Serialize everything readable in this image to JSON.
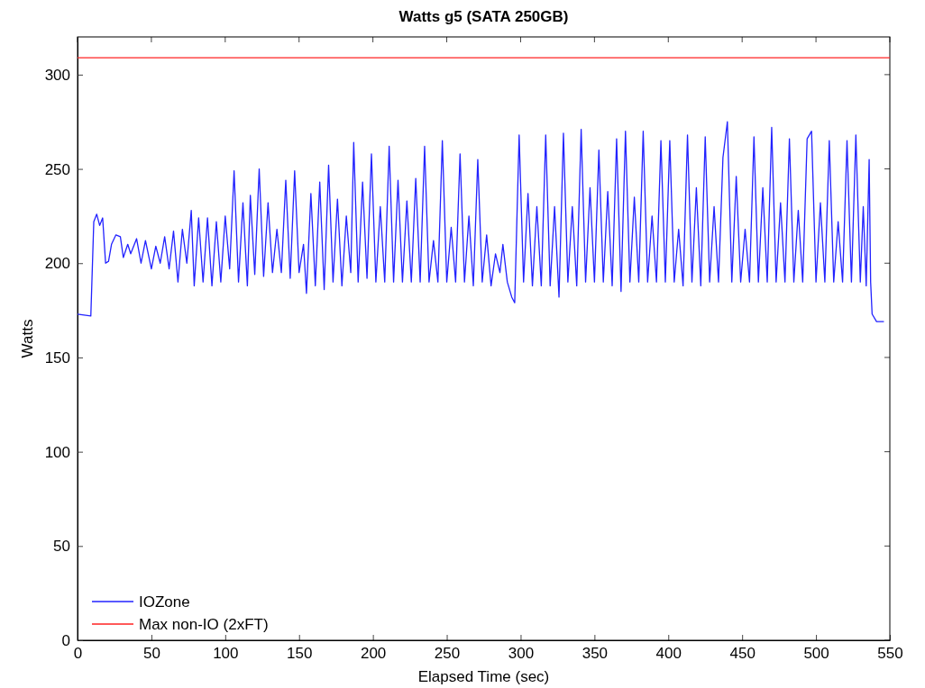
{
  "chart_data": {
    "type": "line",
    "title": "Watts g5 (SATA 250GB)",
    "xlabel": "Elapsed Time (sec)",
    "ylabel": "Watts",
    "xlim": [
      0,
      550
    ],
    "ylim": [
      0,
      320
    ],
    "xticks": [
      0,
      50,
      100,
      150,
      200,
      250,
      300,
      350,
      400,
      450,
      500,
      550
    ],
    "yticks": [
      0,
      50,
      100,
      150,
      200,
      250,
      300
    ],
    "grid": false,
    "legend": "bottom left",
    "marker": "none",
    "line_style": "solid",
    "series": [
      {
        "name": "IOZone",
        "color": "#2222ff",
        "x": [
          0,
          9,
          11,
          13,
          15,
          17,
          19,
          21,
          23,
          26,
          29,
          31,
          34,
          36,
          40,
          43,
          46,
          50,
          53,
          56,
          59,
          62,
          65,
          68,
          71,
          74,
          77,
          79,
          82,
          85,
          88,
          91,
          94,
          97,
          100,
          103,
          106,
          109,
          112,
          115,
          117,
          120,
          123,
          126,
          129,
          132,
          135,
          138,
          141,
          144,
          147,
          150,
          153,
          155,
          158,
          161,
          164,
          167,
          170,
          173,
          176,
          179,
          182,
          185,
          187,
          190,
          193,
          196,
          199,
          202,
          205,
          208,
          211,
          214,
          217,
          220,
          223,
          226,
          229,
          232,
          235,
          238,
          241,
          244,
          247,
          250,
          253,
          256,
          259,
          262,
          265,
          268,
          271,
          274,
          277,
          280,
          283,
          286,
          288,
          291,
          294,
          296,
          299,
          302,
          305,
          308,
          311,
          314,
          317,
          320,
          323,
          326,
          329,
          332,
          335,
          338,
          341,
          344,
          347,
          350,
          353,
          356,
          359,
          362,
          365,
          368,
          371,
          374,
          377,
          380,
          383,
          386,
          389,
          392,
          395,
          398,
          401,
          404,
          407,
          410,
          413,
          416,
          419,
          422,
          425,
          428,
          431,
          434,
          437,
          440,
          443,
          446,
          449,
          452,
          455,
          458,
          461,
          464,
          467,
          470,
          473,
          476,
          479,
          482,
          485,
          488,
          491,
          494,
          497,
          500,
          503,
          506,
          509,
          512,
          515,
          518,
          521,
          524,
          527,
          530,
          532,
          534,
          536,
          537,
          538,
          541,
          546
        ],
        "values": [
          173,
          172,
          222,
          226,
          220,
          224,
          200,
          201,
          210,
          215,
          214,
          203,
          210,
          205,
          213,
          200,
          212,
          197,
          209,
          200,
          214,
          197,
          217,
          190,
          218,
          200,
          228,
          188,
          224,
          190,
          224,
          188,
          222,
          190,
          225,
          197,
          249,
          190,
          232,
          188,
          236,
          194,
          250,
          193,
          232,
          195,
          218,
          195,
          244,
          192,
          249,
          195,
          210,
          184,
          237,
          188,
          243,
          186,
          252,
          190,
          234,
          188,
          225,
          195,
          264,
          190,
          243,
          192,
          258,
          190,
          230,
          190,
          262,
          190,
          244,
          190,
          233,
          190,
          245,
          190,
          262,
          190,
          212,
          190,
          265,
          190,
          219,
          190,
          258,
          190,
          225,
          188,
          255,
          190,
          215,
          188,
          205,
          195,
          210,
          190,
          182,
          179,
          268,
          190,
          237,
          188,
          230,
          188,
          268,
          188,
          230,
          182,
          269,
          190,
          230,
          188,
          271,
          190,
          240,
          190,
          260,
          190,
          238,
          188,
          266,
          185,
          270,
          190,
          235,
          190,
          270,
          190,
          225,
          190,
          265,
          190,
          265,
          190,
          218,
          188,
          268,
          190,
          240,
          188,
          267,
          190,
          230,
          190,
          256,
          275,
          190,
          246,
          190,
          218,
          190,
          267,
          190,
          240,
          190,
          272,
          190,
          232,
          190,
          266,
          190,
          228,
          190,
          266,
          270,
          190,
          232,
          190,
          265,
          190,
          222,
          190,
          265,
          190,
          268,
          190,
          230,
          188,
          255,
          190,
          173,
          169,
          169
        ]
      },
      {
        "name": "Max non-IO (2xFT)",
        "color": "#ff2222",
        "x": [
          0,
          550
        ],
        "values": [
          309,
          309
        ]
      }
    ]
  }
}
